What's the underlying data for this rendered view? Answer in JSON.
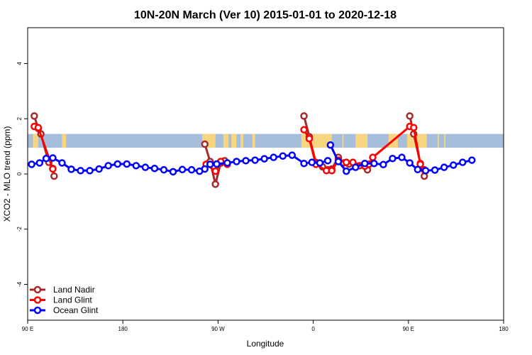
{
  "chart_data": {
    "type": "line",
    "title": "10N-20N March (Ver 10)   2015-01-01 to 2020-12-18",
    "xlabel": "Longitude",
    "ylabel": "XCO2 - MLO trend (ppm)",
    "xlim": [
      -90,
      270
    ],
    "ylim": [
      -5.3,
      5.3
    ],
    "x_ticks": [
      {
        "value": -90,
        "label": "90 E"
      },
      {
        "value": -18,
        "label": "180"
      },
      {
        "value": 54,
        "label": "90 W"
      },
      {
        "value": 126,
        "label": "0"
      },
      {
        "value": 198,
        "label": "90 E"
      },
      {
        "value": 270,
        "label": "180"
      }
    ],
    "y_ticks": [
      {
        "value": -4,
        "label": "-4"
      },
      {
        "value": -2,
        "label": "-2"
      },
      {
        "value": 0,
        "label": "0"
      },
      {
        "value": 2,
        "label": "2"
      },
      {
        "value": 4,
        "label": "4"
      }
    ],
    "band": {
      "ymin": 0.95,
      "ymax": 1.45,
      "ocean_color": "#a6bddb",
      "land_color": "#f8d681"
    },
    "land_spans": [
      [
        -86,
        -82
      ],
      [
        -64,
        -61
      ],
      [
        42,
        52
      ],
      [
        58,
        62
      ],
      [
        64,
        68
      ],
      [
        71,
        73
      ],
      [
        80,
        82
      ],
      [
        117,
        140
      ],
      [
        148,
        149
      ],
      [
        158,
        167
      ],
      [
        183,
        190
      ],
      [
        197,
        212
      ],
      [
        220,
        221
      ],
      [
        225,
        226
      ]
    ],
    "legend": {
      "position": "bottom-left"
    },
    "series": [
      {
        "name": "Land Nadir",
        "color": "#a52a2a",
        "segments": [
          {
            "x": [
              -85,
              -82,
              -80,
              -74,
              -71,
              -70
            ],
            "y": [
              2.1,
              1.65,
              1.45,
              0.42,
              0.2,
              -0.08
            ]
          },
          {
            "x": [
              44,
              48,
              52,
              56,
              59
            ],
            "y": [
              1.08,
              0.45,
              -0.37,
              0.39,
              0.48
            ]
          },
          {
            "x": [
              119,
              123,
              128,
              133,
              137,
              140,
              145,
              149,
              153,
              161,
              167,
              171
            ],
            "y": [
              2.1,
              1.35,
              0.42,
              0.26,
              0.15,
              0.18,
              0.6,
              0.4,
              0.36,
              0.3,
              0.15,
              0.4
            ]
          },
          {
            "x": [
              199,
              202,
              207,
              210
            ],
            "y": [
              2.1,
              1.45,
              0.38,
              -0.08
            ]
          }
        ]
      },
      {
        "name": "Land Glint",
        "color": "#ff0000",
        "segments": [
          {
            "x": [
              -85,
              -82,
              -71
            ],
            "y": [
              1.72,
              1.68,
              0.18
            ]
          },
          {
            "x": [
              45,
              52,
              56,
              61
            ],
            "y": [
              0.35,
              0.1,
              0.45,
              0.35
            ]
          },
          {
            "x": [
              119,
              123,
              128,
              136,
              140,
              145,
              151,
              156,
              165,
              168,
              171,
              199,
              202,
              207,
              210
            ],
            "y": [
              1.6,
              1.28,
              0.35,
              0.12,
              0.12,
              0.5,
              0.42,
              0.42,
              0.28,
              0.35,
              0.6,
              1.72,
              1.68,
              0.35,
              0.15
            ]
          }
        ]
      },
      {
        "name": "Ocean Glint",
        "color": "#0000ff",
        "segments": [
          {
            "x": [
              -87,
              -81,
              -76,
              -71,
              -64,
              -57,
              -50,
              -43,
              -36,
              -29,
              -22,
              -15,
              -8,
              -1,
              6,
              13,
              20,
              27,
              34,
              40,
              44,
              48,
              53,
              61,
              68,
              75,
              82,
              89,
              96,
              103,
              110,
              119,
              125,
              131,
              137
            ],
            "y": [
              0.35,
              0.4,
              0.56,
              0.58,
              0.4,
              0.17,
              0.12,
              0.12,
              0.18,
              0.3,
              0.36,
              0.36,
              0.3,
              0.24,
              0.2,
              0.15,
              0.08,
              0.16,
              0.15,
              0.1,
              0.18,
              0.35,
              0.36,
              0.4,
              0.45,
              0.48,
              0.5,
              0.55,
              0.6,
              0.65,
              0.68,
              0.38,
              0.42,
              0.4,
              0.48
            ]
          },
          {
            "x": [
              139,
              145,
              151,
              158,
              165,
              172,
              179,
              186,
              193,
              199,
              205,
              211,
              218,
              225,
              232,
              239,
              246
            ],
            "y": [
              1.05,
              0.45,
              0.1,
              0.24,
              0.38,
              0.38,
              0.34,
              0.56,
              0.6,
              0.4,
              0.16,
              0.12,
              0.14,
              0.24,
              0.32,
              0.42,
              0.5
            ]
          }
        ]
      }
    ]
  }
}
